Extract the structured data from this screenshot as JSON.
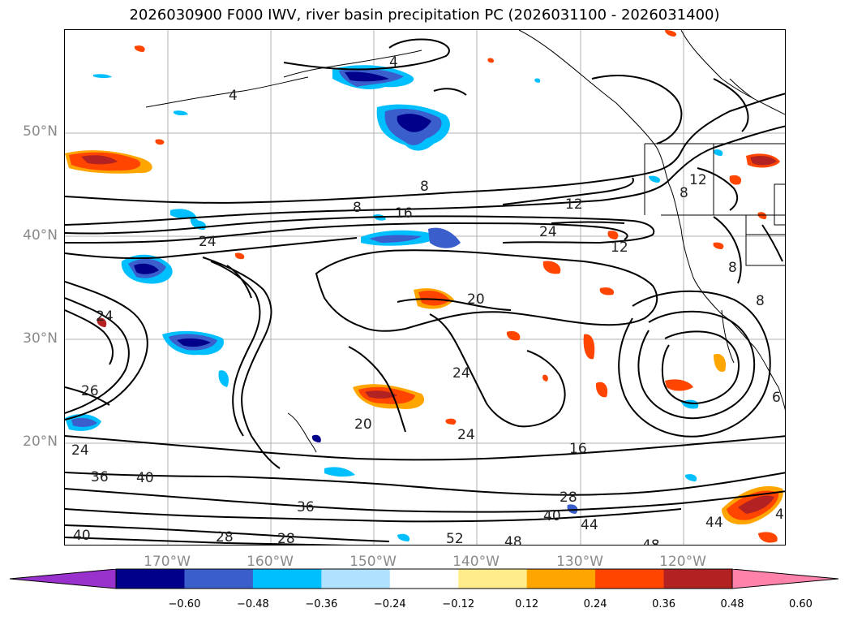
{
  "title": "2026030900 F000 IWV, river basin precipitation PC (2026031100 - 2026031400)",
  "lat_labels": [
    "50°N",
    "40°N",
    "30°N",
    "20°N"
  ],
  "lon_labels": [
    "170°W",
    "160°W",
    "150°W",
    "140°W",
    "130°W",
    "120°W"
  ],
  "colorbar": {
    "ticks": [
      "−0.60",
      "−0.48",
      "−0.36",
      "−0.24",
      "−0.12",
      "0.12",
      "0.24",
      "0.36",
      "0.48",
      "0.60"
    ],
    "colors": [
      "#9932cc",
      "#00008b",
      "#3a5fcd",
      "#00bfff",
      "#b0e2ff",
      "#ffffff",
      "#ffec8b",
      "#ffa500",
      "#ff4500",
      "#b22222",
      "#ff82ab"
    ]
  },
  "contour_labels": [
    "4",
    "4",
    "8",
    "8",
    "12",
    "16",
    "24",
    "24",
    "12",
    "20",
    "24",
    "20",
    "24",
    "16",
    "28",
    "36",
    "40",
    "44",
    "52",
    "48",
    "48",
    "28",
    "28",
    "36",
    "40",
    "40",
    "24",
    "26",
    "24",
    "8",
    "8",
    "8",
    "12",
    "6",
    "44",
    "4"
  ]
}
